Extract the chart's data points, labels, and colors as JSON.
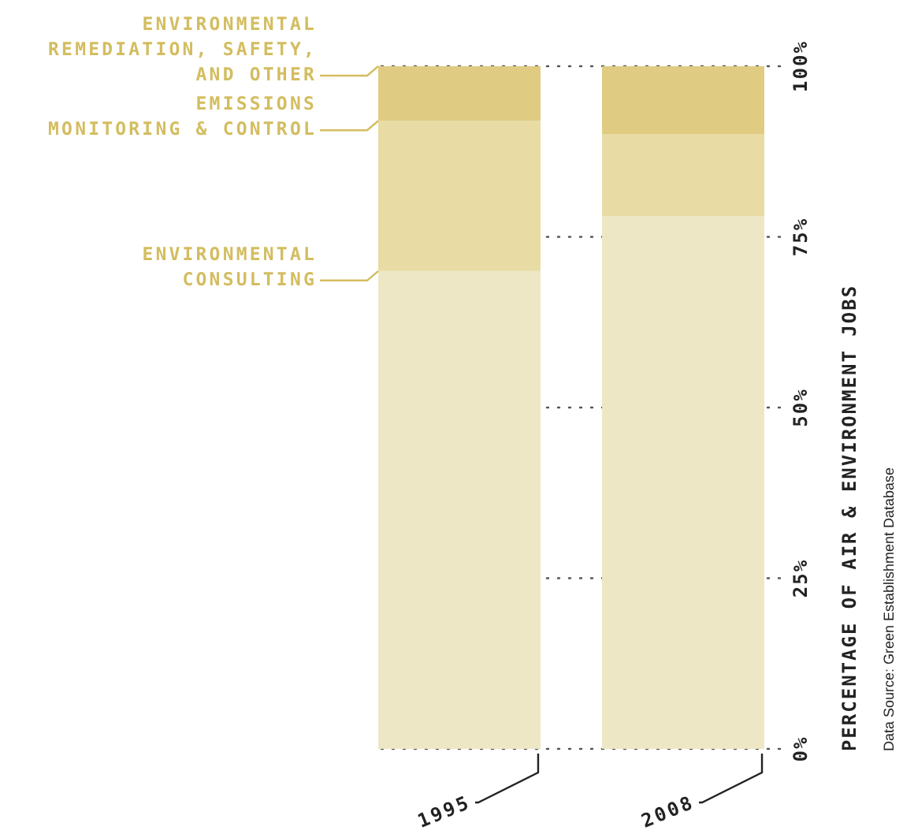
{
  "chart_data": {
    "type": "bar",
    "stacked": true,
    "categories": [
      "1995",
      "2008"
    ],
    "series": [
      {
        "name": "ENVIRONMENTAL\nCONSULTING",
        "color": "#ede7c6",
        "values": [
          70,
          78
        ]
      },
      {
        "name": "EMISSIONS\nMONITORING & CONTROL",
        "color": "#e8dba4",
        "values": [
          22,
          12
        ]
      },
      {
        "name": "ENVIRONMENTAL\nREMEDIATION, SAFETY,\nAND OTHER",
        "color": "#e0cb82",
        "values": [
          8,
          10
        ]
      }
    ],
    "ylabel": "PERCENTAGE OF AIR & ENVIRONMENT JOBS",
    "ylim": [
      0,
      100
    ],
    "yticks": [
      {
        "value": 0,
        "label": "0%"
      },
      {
        "value": 25,
        "label": "25%"
      },
      {
        "value": 50,
        "label": "50%"
      },
      {
        "value": 75,
        "label": "75%"
      },
      {
        "value": 100,
        "label": "100%"
      }
    ],
    "grid": "y",
    "annotations": [
      "Data Source: Green Establishment Database"
    ]
  }
}
